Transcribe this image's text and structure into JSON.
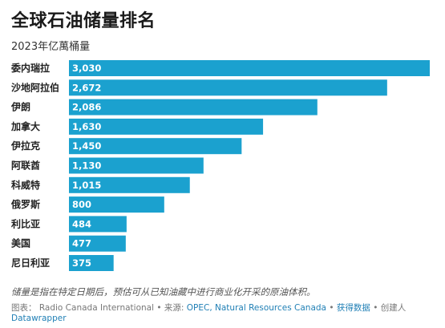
{
  "header": {
    "title": "全球石油储量排名",
    "subtitle": "2023年亿萬桶量"
  },
  "chart_data": {
    "type": "bar",
    "orientation": "horizontal",
    "title": "全球石油储量排名",
    "subtitle": "2023年亿萬桶量",
    "categories": [
      "委内瑞拉",
      "沙地阿拉伯",
      "伊朗",
      "加拿大",
      "伊拉克",
      "阿联酋",
      "科威特",
      "俄罗斯",
      "利比亚",
      "美国",
      "尼日利亚"
    ],
    "values": [
      3030,
      2672,
      2086,
      1630,
      1450,
      1130,
      1015,
      800,
      484,
      477,
      375
    ],
    "value_labels": [
      "3,030",
      "2,672",
      "2,086",
      "1,630",
      "1,450",
      "1,130",
      "1,015",
      "800",
      "484",
      "477",
      "375"
    ],
    "xlim": [
      0,
      3030
    ],
    "bar_color": "#1ba1cf",
    "grid": false,
    "legend": "none"
  },
  "note": "储量是指在特定日期后，预估可从已知油藏中进行商业化开采的原油体积。",
  "footer": {
    "chart_label": "图表：",
    "author": "Radio Canada International",
    "source_label": "• 来源:",
    "source_link": "OPEC, Natural Resources Canada",
    "get_data": "获得数据",
    "created_by": "• 创建人",
    "tool": "Datawrapper",
    "separator": "•"
  }
}
